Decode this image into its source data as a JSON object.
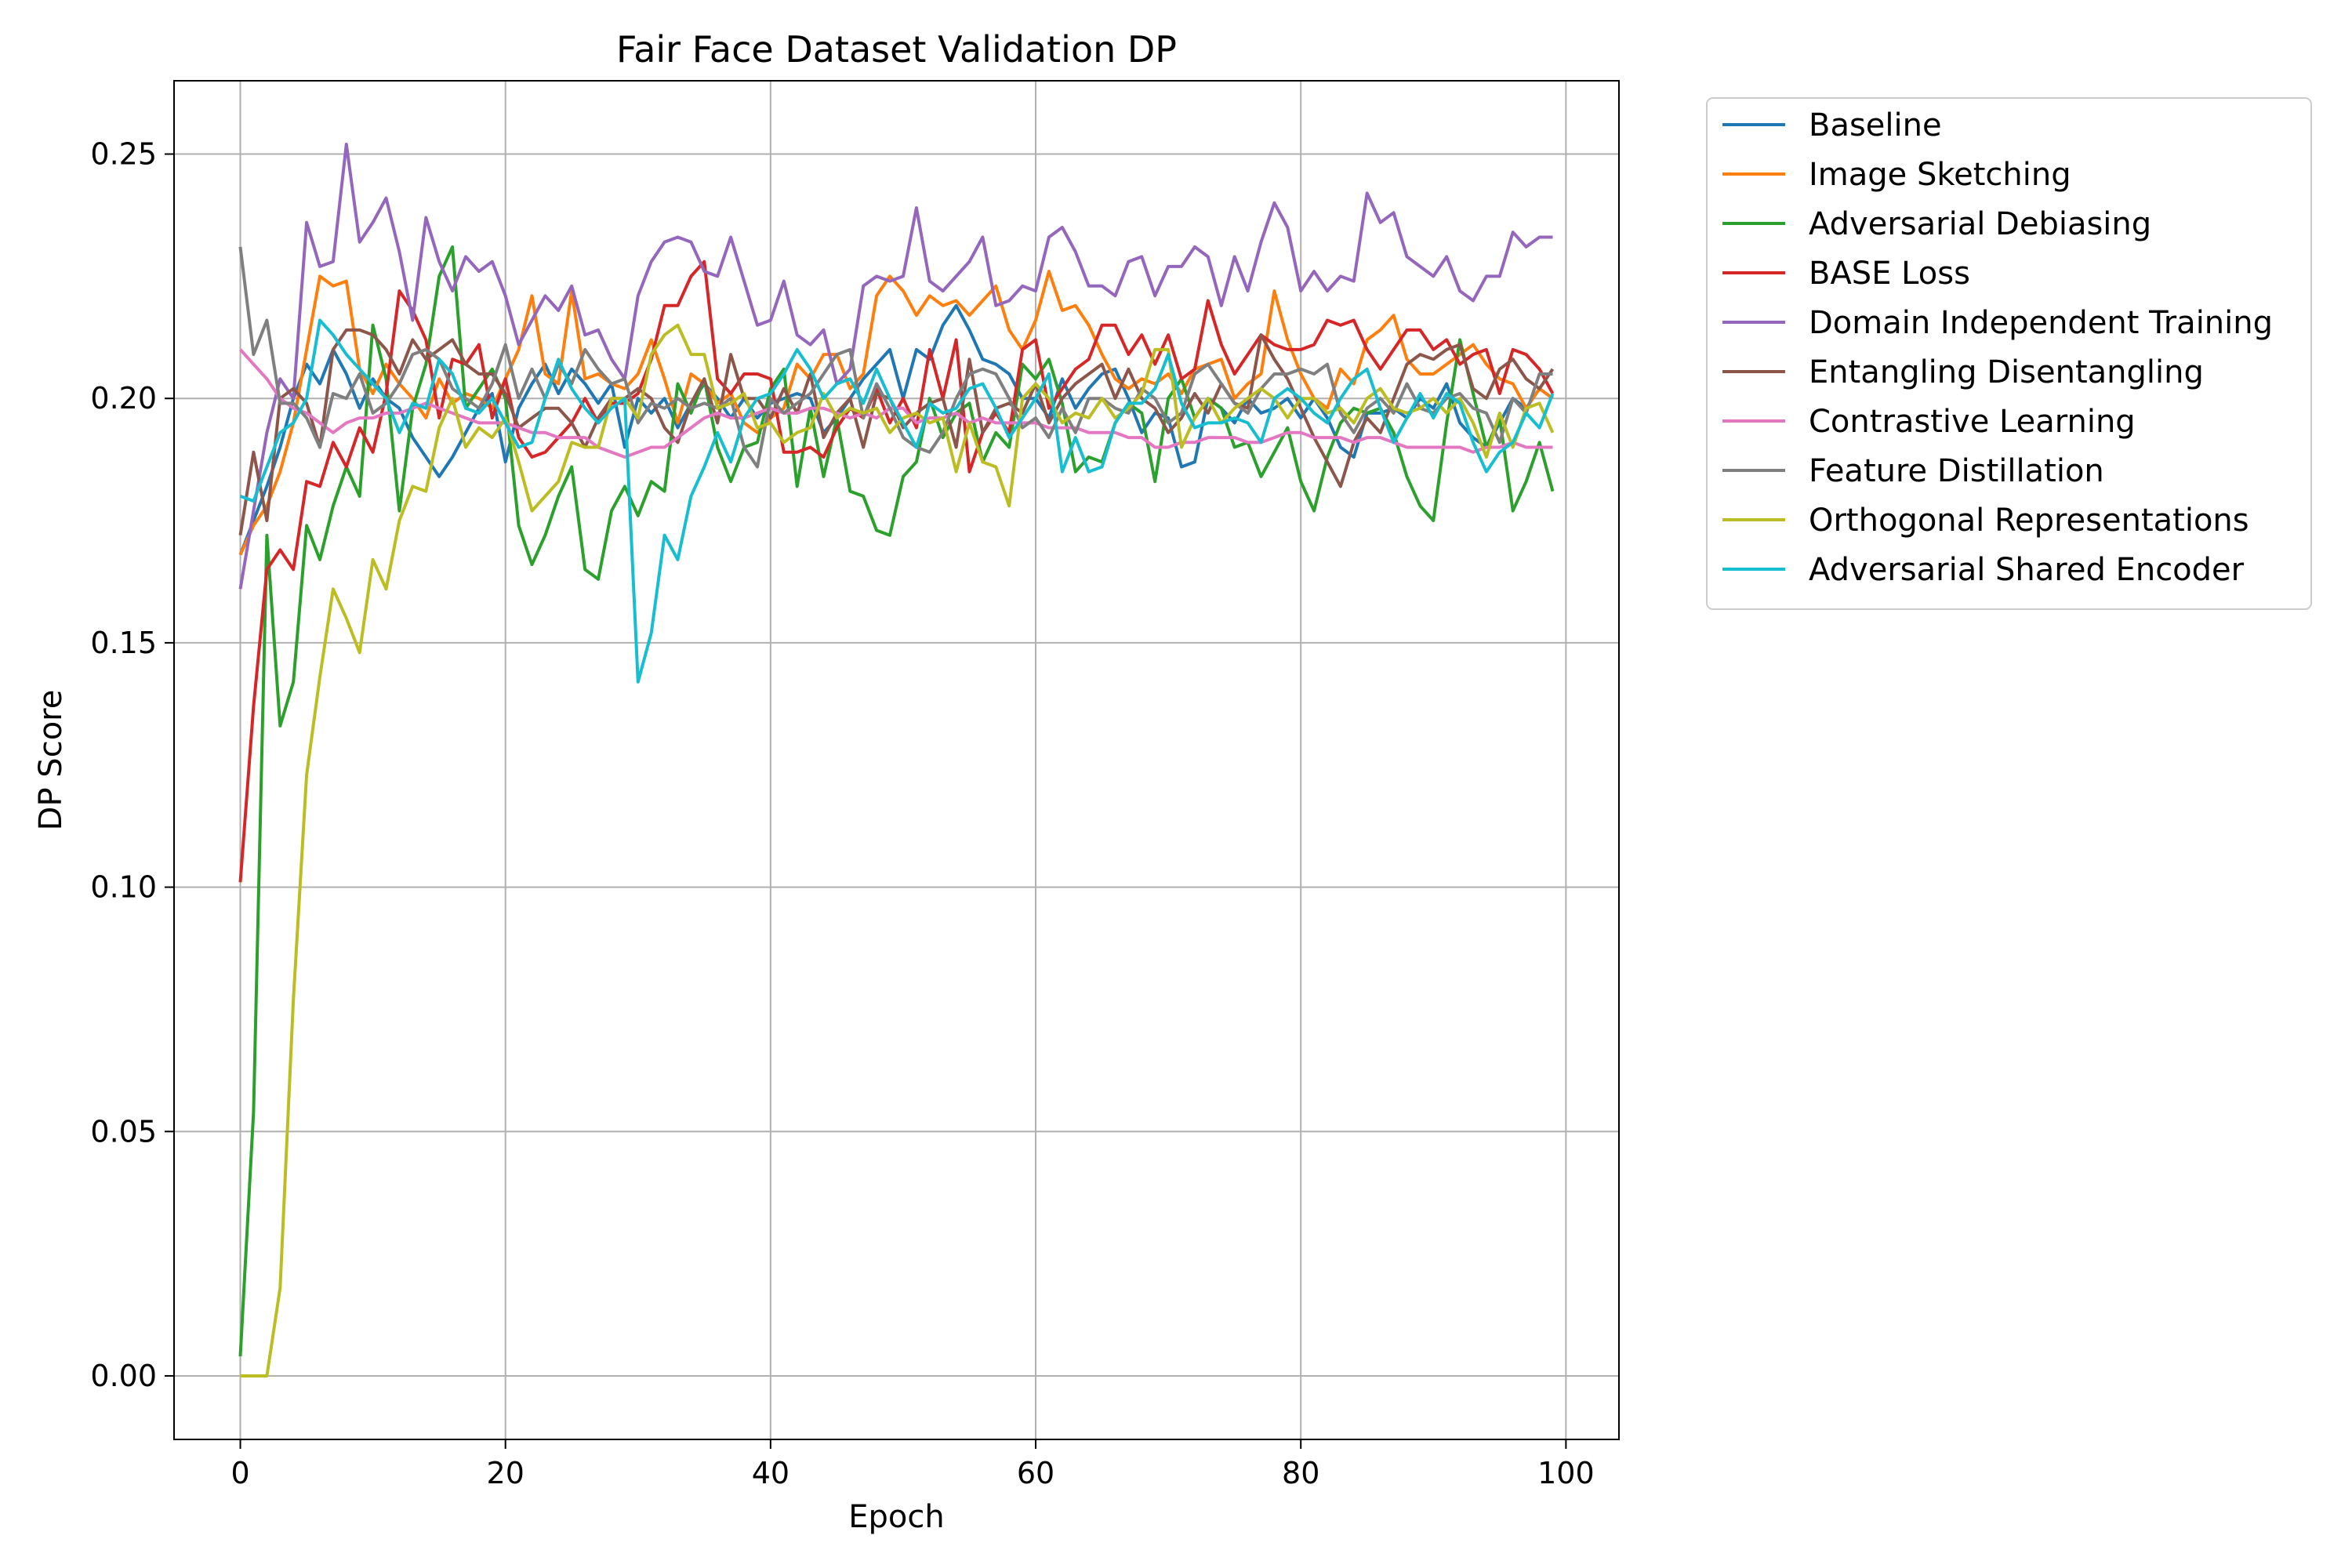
{
  "chart_data": {
    "type": "line",
    "title": "Fair Face Dataset Validation DP",
    "xlabel": "Epoch",
    "ylabel": "DP Score",
    "xlim": [
      -5,
      104
    ],
    "ylim": [
      -0.013,
      0.265
    ],
    "xticks": [
      0,
      20,
      40,
      60,
      80,
      100
    ],
    "xtick_labels": [
      "0",
      "20",
      "40",
      "60",
      "80",
      "100"
    ],
    "yticks": [
      0.0,
      0.05,
      0.1,
      0.15,
      0.2,
      0.25
    ],
    "ytick_labels": [
      "0.00",
      "0.05",
      "0.10",
      "0.15",
      "0.20",
      "0.25"
    ],
    "grid": true,
    "legend_position": "outside-top-right",
    "x": [
      0,
      1,
      2,
      3,
      4,
      5,
      6,
      7,
      8,
      9,
      10,
      11,
      12,
      13,
      14,
      15,
      16,
      17,
      18,
      19,
      20,
      21,
      22,
      23,
      24,
      25,
      26,
      27,
      28,
      29,
      30,
      31,
      32,
      33,
      34,
      35,
      36,
      37,
      38,
      39,
      40,
      41,
      42,
      43,
      44,
      45,
      46,
      47,
      48,
      49,
      50,
      51,
      52,
      53,
      54,
      55,
      56,
      57,
      58,
      59,
      60,
      61,
      62,
      63,
      64,
      65,
      66,
      67,
      68,
      69,
      70,
      71,
      72,
      73,
      74,
      75,
      76,
      77,
      78,
      79,
      80,
      81,
      82,
      83,
      84,
      85,
      86,
      87,
      88,
      89,
      90,
      91,
      92,
      93,
      94,
      95,
      96,
      97,
      98,
      99
    ],
    "series": [
      {
        "name": "Baseline",
        "color": "#1f77b4",
        "values": [
          0.168,
          0.175,
          0.182,
          0.19,
          0.2,
          0.207,
          0.203,
          0.21,
          0.205,
          0.198,
          0.204,
          0.2,
          0.198,
          0.192,
          0.188,
          0.184,
          0.188,
          0.193,
          0.198,
          0.201,
          0.187,
          0.198,
          0.203,
          0.207,
          0.201,
          0.206,
          0.203,
          0.199,
          0.203,
          0.19,
          0.2,
          0.197,
          0.2,
          0.194,
          0.199,
          0.203,
          0.2,
          0.196,
          0.2,
          0.196,
          0.199,
          0.2,
          0.201,
          0.2,
          0.193,
          0.196,
          0.2,
          0.204,
          0.207,
          0.21,
          0.2,
          0.21,
          0.208,
          0.215,
          0.219,
          0.214,
          0.208,
          0.207,
          0.205,
          0.2,
          0.2,
          0.196,
          0.204,
          0.198,
          0.202,
          0.205,
          0.206,
          0.2,
          0.193,
          0.197,
          0.196,
          0.186,
          0.187,
          0.2,
          0.198,
          0.195,
          0.2,
          0.197,
          0.198,
          0.2,
          0.196,
          0.2,
          0.196,
          0.19,
          0.188,
          0.197,
          0.197,
          0.198,
          0.196,
          0.2,
          0.198,
          0.203,
          0.195,
          0.192,
          0.19,
          0.195,
          0.2,
          0.198,
          0.202,
          0.2
        ]
      },
      {
        "name": "Image Sketching",
        "color": "#ff7f0e",
        "values": [
          0.168,
          0.174,
          0.178,
          0.185,
          0.195,
          0.21,
          0.225,
          0.223,
          0.224,
          0.206,
          0.201,
          0.207,
          0.203,
          0.2,
          0.196,
          0.204,
          0.199,
          0.201,
          0.2,
          0.198,
          0.204,
          0.21,
          0.221,
          0.205,
          0.203,
          0.222,
          0.204,
          0.205,
          0.203,
          0.202,
          0.205,
          0.212,
          0.204,
          0.195,
          0.205,
          0.203,
          0.199,
          0.201,
          0.195,
          0.193,
          0.196,
          0.198,
          0.207,
          0.204,
          0.209,
          0.209,
          0.202,
          0.205,
          0.221,
          0.225,
          0.222,
          0.217,
          0.221,
          0.219,
          0.22,
          0.217,
          0.22,
          0.223,
          0.214,
          0.21,
          0.216,
          0.226,
          0.218,
          0.219,
          0.215,
          0.209,
          0.204,
          0.202,
          0.204,
          0.203,
          0.205,
          0.201,
          0.206,
          0.207,
          0.208,
          0.2,
          0.203,
          0.205,
          0.222,
          0.212,
          0.205,
          0.2,
          0.198,
          0.206,
          0.203,
          0.212,
          0.214,
          0.217,
          0.208,
          0.205,
          0.205,
          0.207,
          0.209,
          0.211,
          0.207,
          0.204,
          0.203,
          0.198,
          0.202,
          0.2
        ]
      },
      {
        "name": "Adversarial Debiasing",
        "color": "#2ca02c",
        "values": [
          0.004,
          0.054,
          0.172,
          0.133,
          0.142,
          0.174,
          0.167,
          0.178,
          0.186,
          0.18,
          0.215,
          0.204,
          0.177,
          0.198,
          0.207,
          0.225,
          0.231,
          0.198,
          0.202,
          0.206,
          0.2,
          0.174,
          0.166,
          0.172,
          0.18,
          0.186,
          0.165,
          0.163,
          0.177,
          0.182,
          0.176,
          0.183,
          0.181,
          0.203,
          0.197,
          0.204,
          0.19,
          0.183,
          0.19,
          0.191,
          0.202,
          0.206,
          0.182,
          0.198,
          0.184,
          0.196,
          0.181,
          0.18,
          0.173,
          0.172,
          0.184,
          0.187,
          0.2,
          0.192,
          0.197,
          0.199,
          0.187,
          0.193,
          0.19,
          0.207,
          0.204,
          0.208,
          0.199,
          0.185,
          0.188,
          0.187,
          0.195,
          0.199,
          0.197,
          0.183,
          0.2,
          0.204,
          0.196,
          0.2,
          0.198,
          0.19,
          0.191,
          0.184,
          0.189,
          0.194,
          0.183,
          0.177,
          0.188,
          0.195,
          0.198,
          0.197,
          0.198,
          0.193,
          0.184,
          0.178,
          0.175,
          0.195,
          0.212,
          0.201,
          0.19,
          0.196,
          0.177,
          0.183,
          0.191,
          0.181
        ]
      },
      {
        "name": "BASE Loss",
        "color": "#d62728",
        "values": [
          0.101,
          0.137,
          0.165,
          0.169,
          0.165,
          0.183,
          0.182,
          0.191,
          0.186,
          0.194,
          0.189,
          0.201,
          0.222,
          0.218,
          0.212,
          0.196,
          0.208,
          0.207,
          0.211,
          0.196,
          0.204,
          0.192,
          0.188,
          0.189,
          0.192,
          0.195,
          0.2,
          0.195,
          0.199,
          0.199,
          0.201,
          0.208,
          0.219,
          0.219,
          0.225,
          0.228,
          0.204,
          0.201,
          0.205,
          0.205,
          0.204,
          0.189,
          0.189,
          0.19,
          0.188,
          0.194,
          0.198,
          0.196,
          0.202,
          0.195,
          0.2,
          0.194,
          0.21,
          0.2,
          0.212,
          0.185,
          0.193,
          0.197,
          0.193,
          0.21,
          0.212,
          0.198,
          0.202,
          0.206,
          0.208,
          0.215,
          0.215,
          0.209,
          0.213,
          0.207,
          0.213,
          0.204,
          0.206,
          0.22,
          0.211,
          0.205,
          0.209,
          0.213,
          0.211,
          0.21,
          0.21,
          0.211,
          0.216,
          0.215,
          0.216,
          0.21,
          0.206,
          0.21,
          0.214,
          0.214,
          0.21,
          0.212,
          0.207,
          0.209,
          0.21,
          0.201,
          0.21,
          0.209,
          0.206,
          0.201
        ]
      },
      {
        "name": "Domain Independent Training",
        "color": "#9467bd",
        "values": [
          0.161,
          0.177,
          0.193,
          0.204,
          0.2,
          0.236,
          0.227,
          0.228,
          0.252,
          0.232,
          0.236,
          0.241,
          0.23,
          0.216,
          0.237,
          0.228,
          0.222,
          0.229,
          0.226,
          0.228,
          0.221,
          0.211,
          0.216,
          0.221,
          0.218,
          0.223,
          0.213,
          0.214,
          0.208,
          0.204,
          0.221,
          0.228,
          0.232,
          0.233,
          0.232,
          0.226,
          0.225,
          0.233,
          0.224,
          0.215,
          0.216,
          0.224,
          0.213,
          0.211,
          0.214,
          0.203,
          0.206,
          0.223,
          0.225,
          0.224,
          0.225,
          0.239,
          0.224,
          0.222,
          0.225,
          0.228,
          0.233,
          0.219,
          0.22,
          0.223,
          0.222,
          0.233,
          0.235,
          0.23,
          0.223,
          0.223,
          0.221,
          0.228,
          0.229,
          0.221,
          0.227,
          0.227,
          0.231,
          0.229,
          0.219,
          0.229,
          0.222,
          0.232,
          0.24,
          0.235,
          0.222,
          0.226,
          0.222,
          0.225,
          0.224,
          0.242,
          0.236,
          0.238,
          0.229,
          0.227,
          0.225,
          0.229,
          0.222,
          0.22,
          0.225,
          0.225,
          0.234,
          0.231,
          0.233,
          0.233
        ]
      },
      {
        "name": "Entangling Disentangling",
        "color": "#8c564b",
        "values": [
          0.172,
          0.189,
          0.175,
          0.2,
          0.202,
          0.199,
          0.19,
          0.21,
          0.214,
          0.214,
          0.213,
          0.21,
          0.205,
          0.212,
          0.208,
          0.21,
          0.212,
          0.207,
          0.205,
          0.205,
          0.201,
          0.194,
          0.196,
          0.198,
          0.198,
          0.195,
          0.19,
          0.196,
          0.2,
          0.2,
          0.202,
          0.2,
          0.194,
          0.191,
          0.199,
          0.204,
          0.195,
          0.209,
          0.2,
          0.2,
          0.196,
          0.202,
          0.197,
          0.205,
          0.192,
          0.197,
          0.2,
          0.19,
          0.201,
          0.2,
          0.194,
          0.197,
          0.199,
          0.2,
          0.19,
          0.208,
          0.193,
          0.198,
          0.199,
          0.197,
          0.203,
          0.195,
          0.2,
          0.203,
          0.205,
          0.207,
          0.2,
          0.206,
          0.2,
          0.198,
          0.193,
          0.196,
          0.201,
          0.197,
          0.203,
          0.199,
          0.198,
          0.213,
          0.208,
          0.204,
          0.198,
          0.192,
          0.187,
          0.182,
          0.191,
          0.196,
          0.193,
          0.2,
          0.207,
          0.209,
          0.208,
          0.21,
          0.211,
          0.202,
          0.2,
          0.206,
          0.208,
          0.204,
          0.202,
          0.206
        ]
      },
      {
        "name": "Contrastive Learning",
        "color": "#e377c2",
        "values": [
          0.21,
          0.207,
          0.204,
          0.2,
          0.198,
          0.197,
          0.195,
          0.193,
          0.195,
          0.196,
          0.196,
          0.197,
          0.197,
          0.198,
          0.199,
          0.198,
          0.197,
          0.196,
          0.195,
          0.195,
          0.195,
          0.194,
          0.193,
          0.193,
          0.192,
          0.192,
          0.192,
          0.19,
          0.189,
          0.188,
          0.189,
          0.19,
          0.19,
          0.192,
          0.194,
          0.196,
          0.197,
          0.196,
          0.196,
          0.197,
          0.198,
          0.197,
          0.197,
          0.198,
          0.198,
          0.197,
          0.196,
          0.197,
          0.196,
          0.198,
          0.198,
          0.195,
          0.196,
          0.196,
          0.197,
          0.195,
          0.196,
          0.195,
          0.195,
          0.195,
          0.195,
          0.194,
          0.194,
          0.194,
          0.193,
          0.193,
          0.193,
          0.192,
          0.192,
          0.19,
          0.19,
          0.191,
          0.191,
          0.192,
          0.192,
          0.192,
          0.191,
          0.191,
          0.192,
          0.193,
          0.193,
          0.192,
          0.192,
          0.192,
          0.191,
          0.192,
          0.192,
          0.191,
          0.19,
          0.19,
          0.19,
          0.19,
          0.19,
          0.189,
          0.19,
          0.19,
          0.191,
          0.19,
          0.19,
          0.19
        ]
      },
      {
        "name": "Feature Distillation",
        "color": "#7f7f7f",
        "values": [
          0.231,
          0.209,
          0.216,
          0.199,
          0.199,
          0.196,
          0.19,
          0.201,
          0.2,
          0.205,
          0.197,
          0.199,
          0.203,
          0.209,
          0.21,
          0.208,
          0.202,
          0.2,
          0.198,
          0.203,
          0.211,
          0.2,
          0.206,
          0.2,
          0.207,
          0.203,
          0.21,
          0.206,
          0.203,
          0.204,
          0.195,
          0.199,
          0.198,
          0.2,
          0.198,
          0.199,
          0.198,
          0.2,
          0.19,
          0.186,
          0.2,
          0.197,
          0.199,
          0.201,
          0.205,
          0.209,
          0.21,
          0.196,
          0.203,
          0.198,
          0.192,
          0.19,
          0.189,
          0.193,
          0.2,
          0.205,
          0.206,
          0.205,
          0.2,
          0.194,
          0.196,
          0.192,
          0.198,
          0.193,
          0.2,
          0.2,
          0.198,
          0.197,
          0.202,
          0.2,
          0.195,
          0.197,
          0.205,
          0.207,
          0.203,
          0.199,
          0.197,
          0.202,
          0.205,
          0.205,
          0.206,
          0.205,
          0.207,
          0.197,
          0.193,
          0.198,
          0.2,
          0.197,
          0.203,
          0.198,
          0.197,
          0.2,
          0.201,
          0.198,
          0.197,
          0.191,
          0.2,
          0.197,
          0.205,
          0.205
        ]
      },
      {
        "name": "Orthogonal Representations",
        "color": "#bcbd22",
        "values": [
          0.0,
          0.0,
          0.0,
          0.018,
          0.077,
          0.123,
          0.143,
          0.161,
          0.155,
          0.148,
          0.167,
          0.161,
          0.175,
          0.182,
          0.181,
          0.194,
          0.2,
          0.19,
          0.194,
          0.192,
          0.196,
          0.187,
          0.177,
          0.18,
          0.183,
          0.191,
          0.19,
          0.19,
          0.2,
          0.2,
          0.196,
          0.209,
          0.213,
          0.215,
          0.209,
          0.209,
          0.198,
          0.199,
          0.201,
          0.194,
          0.195,
          0.191,
          0.193,
          0.194,
          0.201,
          0.196,
          0.198,
          0.197,
          0.198,
          0.193,
          0.196,
          0.197,
          0.195,
          0.196,
          0.185,
          0.195,
          0.187,
          0.186,
          0.178,
          0.2,
          0.203,
          0.2,
          0.195,
          0.197,
          0.196,
          0.2,
          0.196,
          0.198,
          0.201,
          0.21,
          0.21,
          0.19,
          0.196,
          0.2,
          0.195,
          0.198,
          0.2,
          0.202,
          0.2,
          0.196,
          0.2,
          0.2,
          0.197,
          0.198,
          0.195,
          0.2,
          0.202,
          0.198,
          0.197,
          0.198,
          0.2,
          0.197,
          0.2,
          0.195,
          0.188,
          0.197,
          0.19,
          0.198,
          0.199,
          0.193
        ]
      },
      {
        "name": "Adversarial Shared Encoder",
        "color": "#17becf",
        "values": [
          0.18,
          0.179,
          0.186,
          0.193,
          0.195,
          0.2,
          0.216,
          0.213,
          0.209,
          0.206,
          0.203,
          0.2,
          0.193,
          0.199,
          0.198,
          0.208,
          0.205,
          0.198,
          0.197,
          0.2,
          0.195,
          0.19,
          0.191,
          0.2,
          0.208,
          0.202,
          0.198,
          0.195,
          0.198,
          0.2,
          0.142,
          0.152,
          0.172,
          0.167,
          0.18,
          0.186,
          0.193,
          0.187,
          0.196,
          0.2,
          0.201,
          0.205,
          0.21,
          0.206,
          0.2,
          0.203,
          0.204,
          0.199,
          0.206,
          0.2,
          0.195,
          0.19,
          0.199,
          0.197,
          0.198,
          0.202,
          0.203,
          0.198,
          0.192,
          0.196,
          0.2,
          0.205,
          0.185,
          0.192,
          0.185,
          0.186,
          0.195,
          0.199,
          0.199,
          0.202,
          0.209,
          0.199,
          0.194,
          0.195,
          0.195,
          0.196,
          0.195,
          0.191,
          0.2,
          0.202,
          0.2,
          0.197,
          0.195,
          0.2,
          0.204,
          0.206,
          0.198,
          0.191,
          0.196,
          0.201,
          0.196,
          0.201,
          0.199,
          0.191,
          0.185,
          0.189,
          0.191,
          0.197,
          0.194,
          0.201
        ]
      }
    ]
  }
}
